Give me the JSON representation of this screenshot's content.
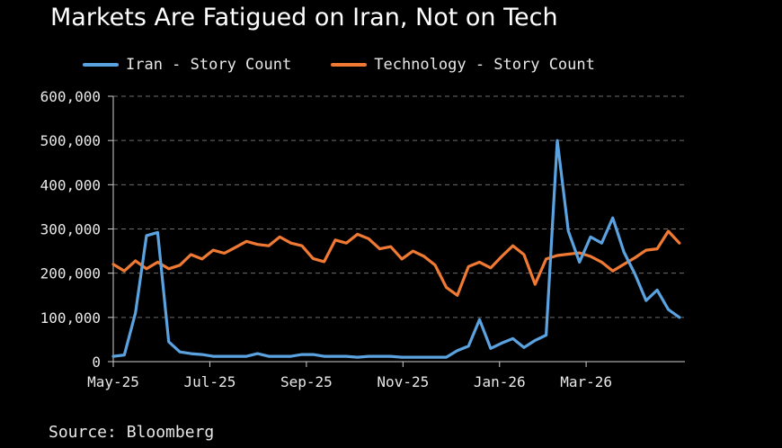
{
  "chart_data": {
    "type": "line",
    "title": "Markets Are Fatigued on Iran, Not on Tech",
    "source": "Source: Bloomberg",
    "grid": true,
    "legend_placement": "top",
    "ylim": [
      0,
      600000
    ],
    "y_ticks": [
      "0",
      "100,000",
      "200,000",
      "300,000",
      "400,000",
      "500,000",
      "600,000"
    ],
    "y_tick_values": [
      0,
      100000,
      200000,
      300000,
      400000,
      500000,
      600000
    ],
    "x_ticks": [
      "May-25",
      "Jul-25",
      "Sep-25",
      "Nov-25",
      "Jan-26",
      "Mar-26"
    ],
    "x_tick_weeks": [
      0,
      8.7,
      17.4,
      26.1,
      34.8,
      42.6
    ],
    "x_range": [
      0,
      51.5
    ],
    "series": [
      {
        "name": "Iran - Story Count",
        "color": "#5ba3e0",
        "x": [
          0,
          1,
          2,
          3,
          4,
          5,
          6,
          7,
          8,
          9,
          10,
          11,
          12,
          13,
          14,
          15,
          16,
          17,
          18,
          19,
          20,
          21,
          22,
          23,
          24,
          25,
          26,
          27,
          28,
          29,
          30,
          31,
          32,
          33,
          34,
          35,
          36,
          37,
          38,
          39,
          40,
          41,
          42,
          43,
          44,
          45,
          46,
          47,
          48,
          49,
          50,
          51
        ],
        "values": [
          12000,
          15000,
          110000,
          285000,
          292000,
          45000,
          22000,
          18000,
          16000,
          12000,
          12000,
          12000,
          12000,
          18000,
          12000,
          12000,
          12000,
          16000,
          16000,
          12000,
          12000,
          12000,
          10000,
          12000,
          12000,
          12000,
          10000,
          10000,
          10000,
          10000,
          10000,
          25000,
          35000,
          95000,
          30000,
          42000,
          52000,
          32000,
          48000,
          60000,
          500000,
          295000,
          225000,
          282000,
          268000,
          325000,
          248000,
          198000,
          138000,
          162000,
          118000,
          100000
        ]
      },
      {
        "name": "Technology - Story Count",
        "color": "#f07a33",
        "x": [
          0,
          1,
          2,
          3,
          4,
          5,
          6,
          7,
          8,
          9,
          10,
          11,
          12,
          13,
          14,
          15,
          16,
          17,
          18,
          19,
          20,
          21,
          22,
          23,
          24,
          25,
          26,
          27,
          28,
          29,
          30,
          31,
          32,
          33,
          34,
          35,
          36,
          37,
          38,
          39,
          40,
          41,
          42,
          43,
          44,
          45,
          46,
          47,
          48,
          49,
          50,
          51
        ],
        "values": [
          220000,
          205000,
          228000,
          210000,
          225000,
          210000,
          218000,
          242000,
          232000,
          252000,
          245000,
          258000,
          272000,
          265000,
          262000,
          282000,
          268000,
          262000,
          233000,
          226000,
          275000,
          268000,
          288000,
          278000,
          255000,
          260000,
          232000,
          250000,
          238000,
          218000,
          168000,
          150000,
          215000,
          225000,
          212000,
          238000,
          262000,
          242000,
          175000,
          232000,
          240000,
          243000,
          246000,
          238000,
          225000,
          205000,
          220000,
          235000,
          252000,
          255000,
          295000,
          268000
        ]
      }
    ]
  }
}
